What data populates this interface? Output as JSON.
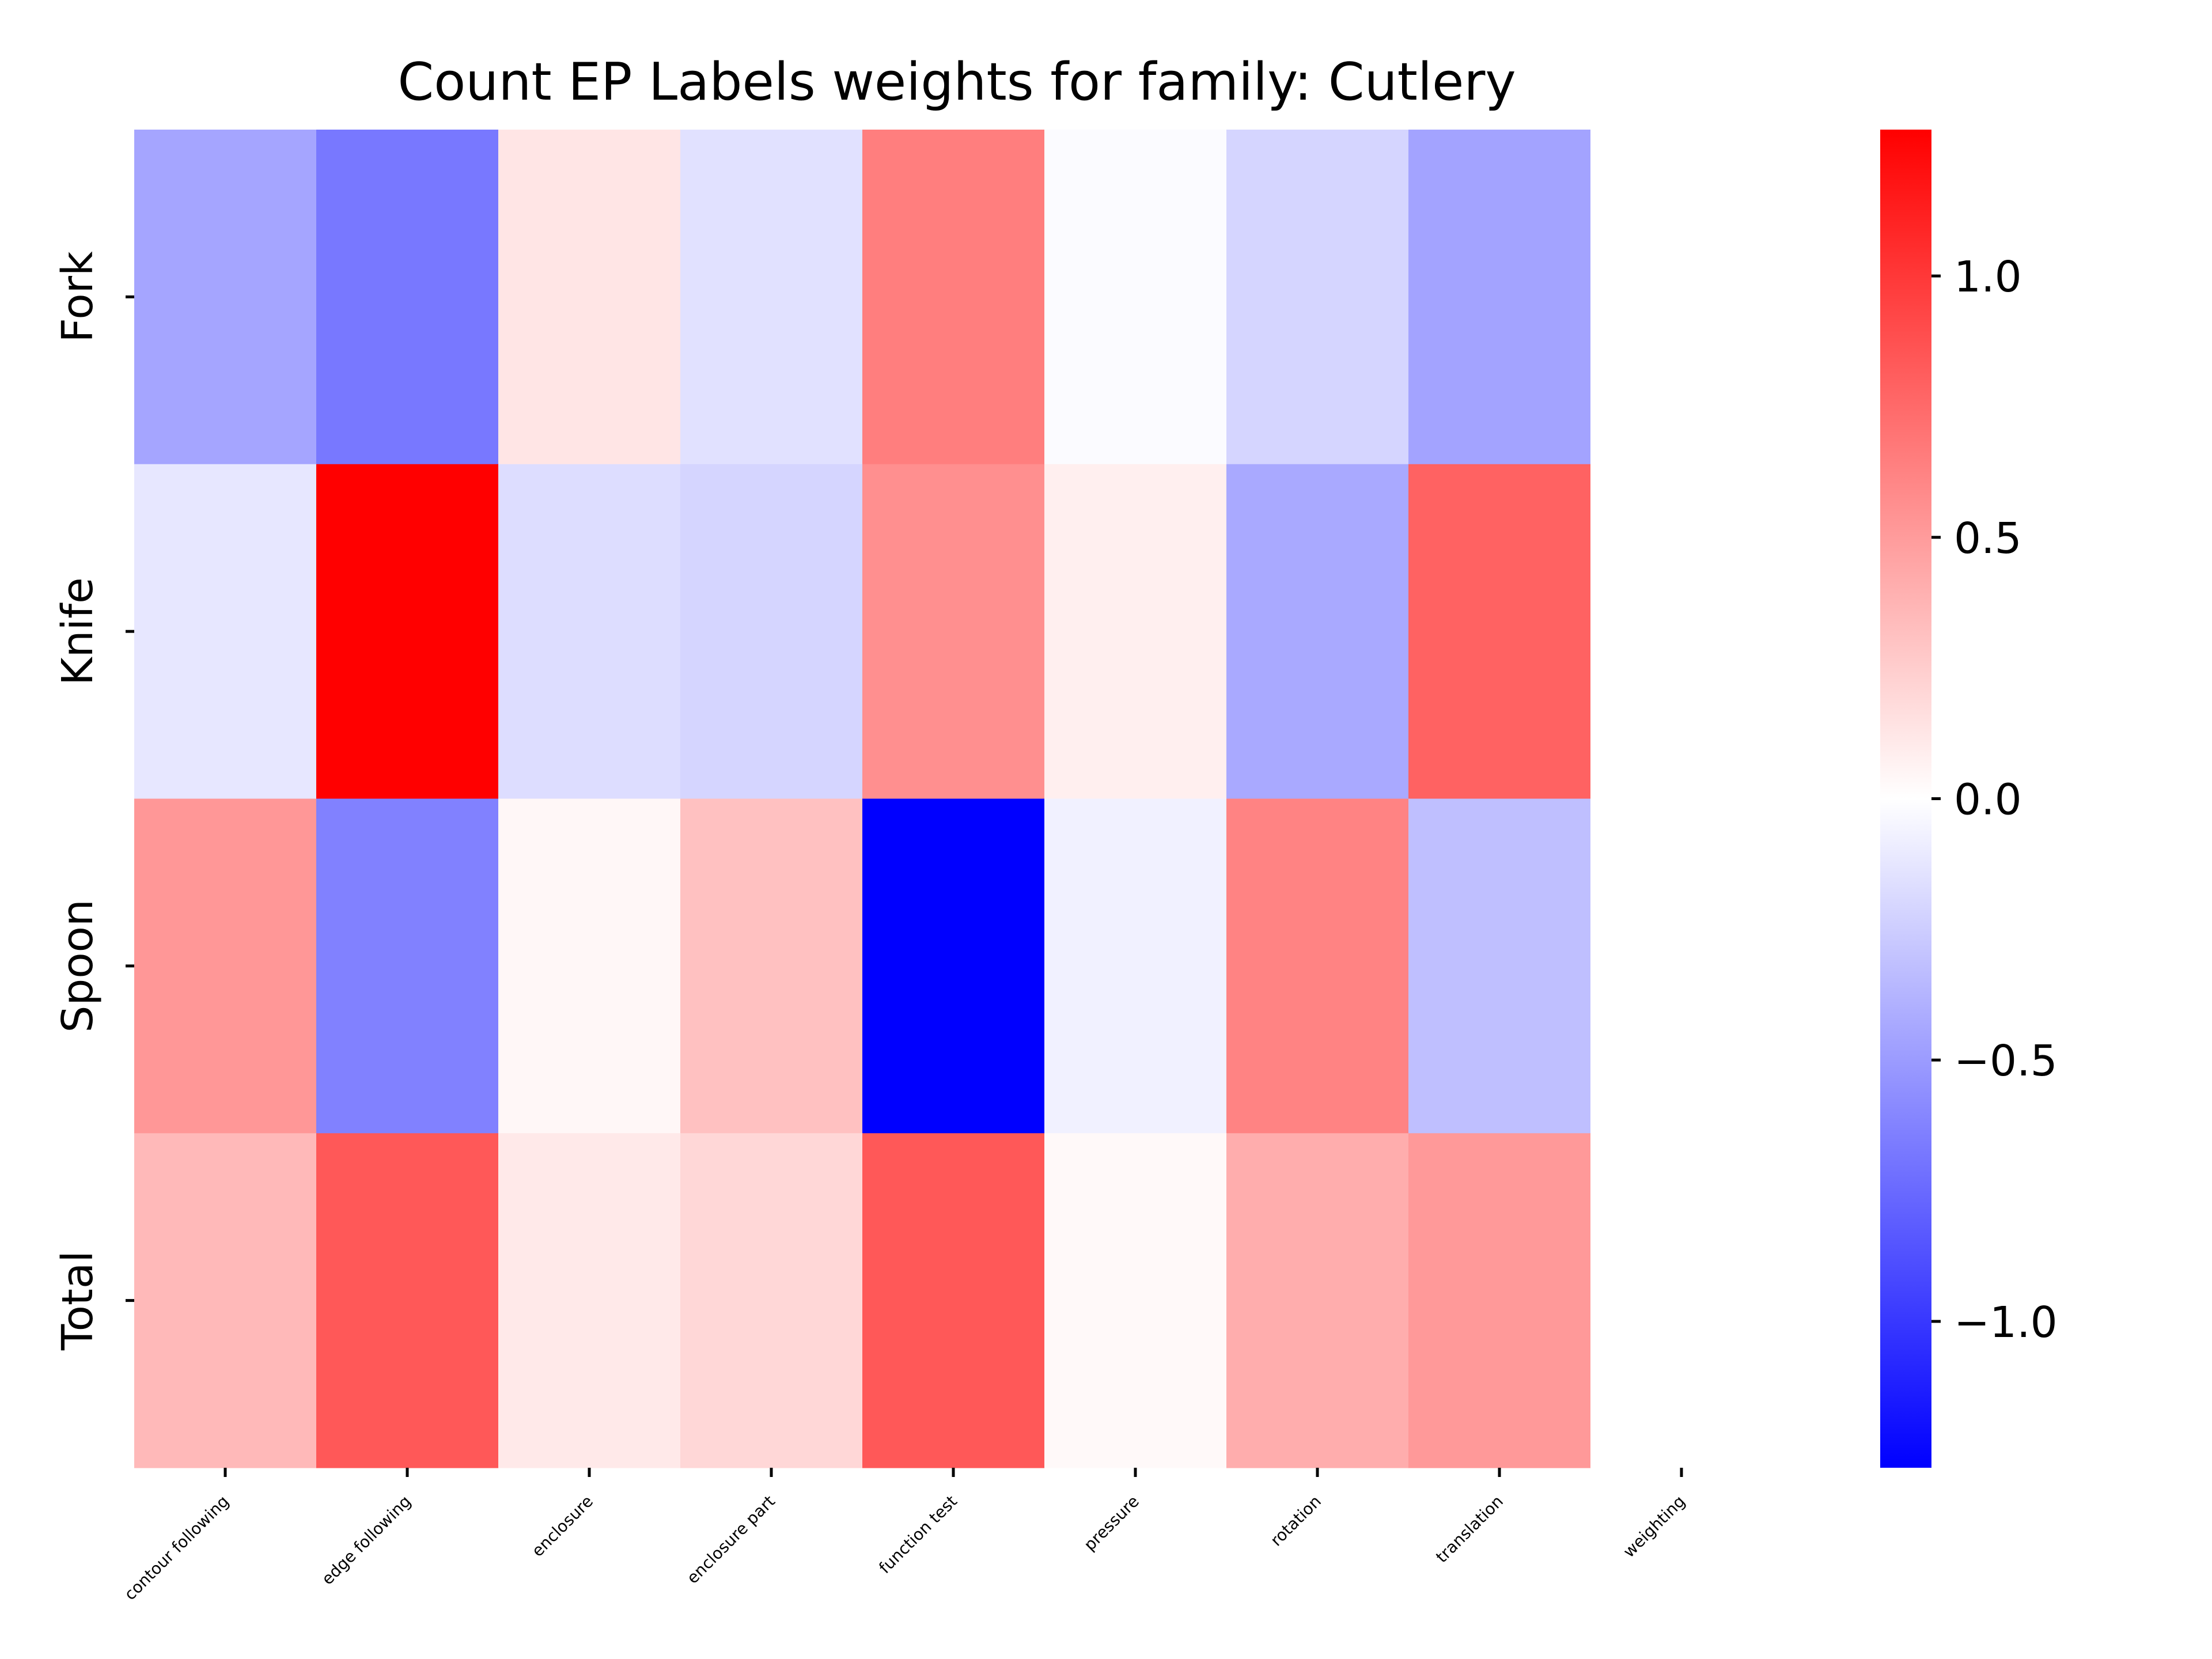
{
  "chart_data": {
    "type": "heatmap",
    "title": "Count EP Labels weights for family: Cutlery",
    "xlabel": "",
    "ylabel": "",
    "rows": [
      "Fork",
      "Knife",
      "Spoon",
      "Total"
    ],
    "columns": [
      "contour following",
      "edge following",
      "enclosure",
      "enclosure part",
      "function test",
      "pressure",
      "rotation",
      "translation",
      "weighting"
    ],
    "values": [
      [
        -0.45,
        -0.68,
        0.13,
        -0.15,
        0.65,
        -0.02,
        -0.21,
        -0.46,
        0.0
      ],
      [
        -0.12,
        1.28,
        -0.17,
        -0.21,
        0.56,
        0.08,
        -0.43,
        0.79,
        0.0
      ],
      [
        0.52,
        -0.63,
        0.04,
        0.31,
        -1.28,
        -0.07,
        0.62,
        -0.32,
        0.0
      ],
      [
        0.35,
        0.84,
        0.11,
        0.2,
        0.84,
        0.03,
        0.41,
        0.51,
        0.0
      ]
    ],
    "colormap": {
      "name": "bwr",
      "low": "#0000ff",
      "mid": "#ffffff",
      "high": "#ff0000"
    },
    "vmin": -1.28,
    "vmax": 1.28,
    "colorbar_ticks": [
      1.0,
      0.5,
      0.0,
      -0.5,
      -1.0
    ],
    "colorbar_tick_labels": [
      "1.0",
      "0.5",
      "0.0",
      "−0.5",
      "−1.0"
    ],
    "grid": false,
    "legend": "colorbar-right"
  }
}
